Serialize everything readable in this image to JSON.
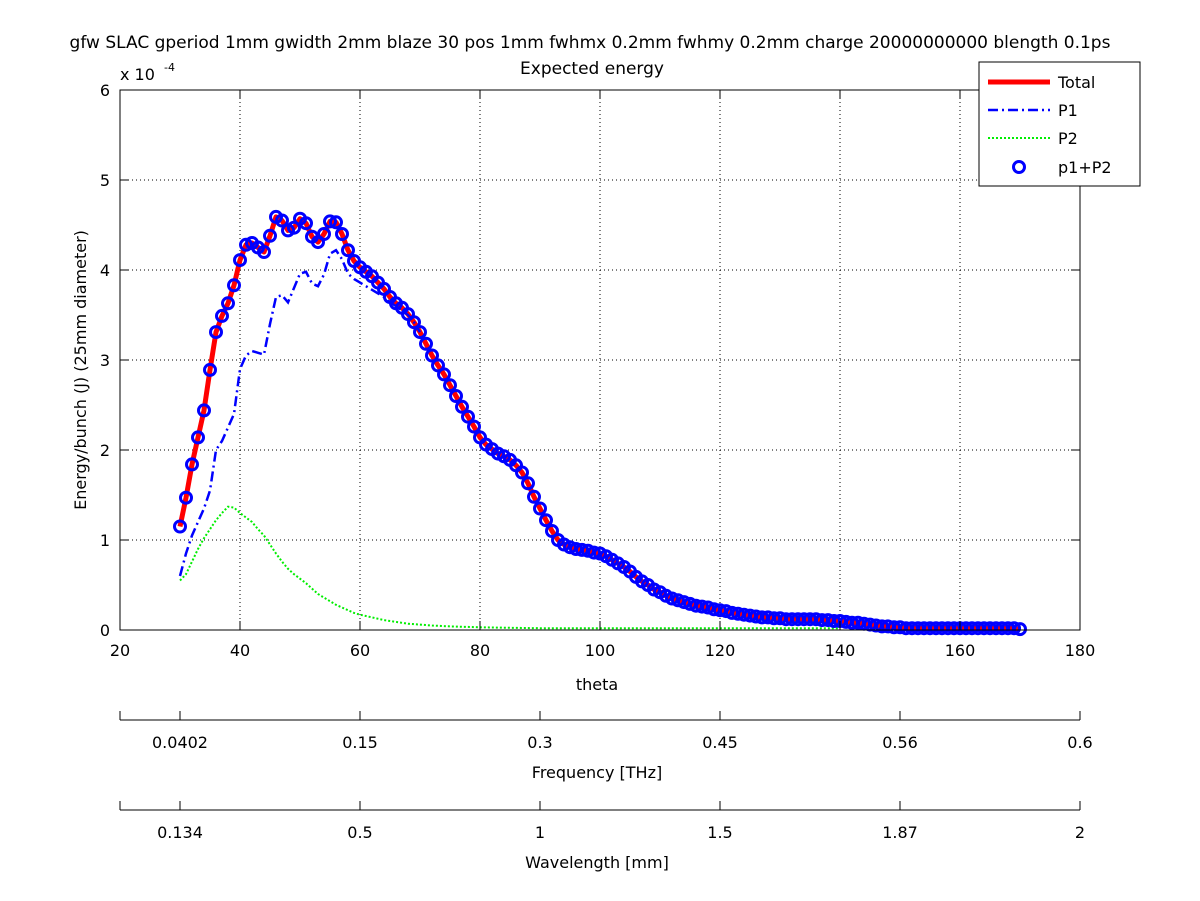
{
  "chart_data": {
    "type": "line",
    "title": "gfw SLAC gperiod 1mm gwidth 2mm blaze 30 pos 1mm fwhmx 0.2mm fwhmy 0.2mm charge 20000000000 blength 0.1ps",
    "subtitle": "Expected energy",
    "xlabel": "theta",
    "ylabel": "Energy/bunch (J) (25mm diameter)",
    "y_multiplier_label": "x 10",
    "y_multiplier_exp": "-4",
    "xlim": [
      20,
      180
    ],
    "ylim": [
      0,
      6
    ],
    "xticks": [
      20,
      40,
      60,
      80,
      100,
      120,
      140,
      160,
      180
    ],
    "yticks": [
      0,
      1,
      2,
      3,
      4,
      5,
      6
    ],
    "grid": true,
    "legend_position": "top-right",
    "secondary_axes": [
      {
        "label": "Frequency [THz]",
        "ticks": [
          {
            "at_theta": 30,
            "label": "0.0402"
          },
          {
            "at_theta": 60,
            "label": "0.15"
          },
          {
            "at_theta": 90,
            "label": "0.3"
          },
          {
            "at_theta": 120,
            "label": "0.45"
          },
          {
            "at_theta": 150,
            "label": "0.56"
          },
          {
            "at_theta": 180,
            "label": "0.6"
          }
        ]
      },
      {
        "label": "Wavelength [mm]",
        "ticks": [
          {
            "at_theta": 30,
            "label": "0.134"
          },
          {
            "at_theta": 60,
            "label": "0.5"
          },
          {
            "at_theta": 90,
            "label": "1"
          },
          {
            "at_theta": 120,
            "label": "1.5"
          },
          {
            "at_theta": 150,
            "label": "1.87"
          },
          {
            "at_theta": 180,
            "label": "2"
          }
        ]
      }
    ],
    "series": [
      {
        "name": "Total",
        "color": "#ff0000",
        "style": "solid-thick",
        "x": [
          30,
          31,
          32,
          33,
          34,
          35,
          36,
          37,
          38,
          39,
          40,
          41,
          42,
          43,
          44,
          45,
          46,
          47,
          48,
          49,
          50,
          51,
          52,
          53,
          54,
          55,
          56,
          57,
          58,
          59,
          60,
          61,
          62,
          63,
          64,
          65,
          66,
          67,
          68,
          69,
          70,
          71,
          72,
          73,
          74,
          75,
          76,
          77,
          78,
          79,
          80,
          81,
          82,
          83,
          84,
          85,
          86,
          87,
          88,
          89,
          90,
          91,
          92,
          93,
          94,
          95,
          96,
          97,
          98,
          99,
          100,
          101,
          102,
          103,
          104,
          105,
          106,
          107,
          108,
          109,
          110,
          111,
          112,
          113,
          114,
          115,
          116,
          117,
          118,
          119,
          120,
          121,
          122,
          123,
          124,
          125,
          126,
          127,
          128,
          129,
          130,
          131,
          132,
          133,
          134,
          135,
          136,
          137,
          138,
          139,
          140,
          141,
          142,
          143,
          144,
          145,
          146,
          147,
          148,
          149,
          150,
          151,
          152,
          153,
          154,
          155,
          156,
          157,
          158,
          159,
          160,
          161,
          162,
          163,
          164,
          165,
          166,
          167,
          168,
          169,
          170
        ],
        "y": [
          1.15,
          1.47,
          1.84,
          2.14,
          2.44,
          2.89,
          3.31,
          3.49,
          3.63,
          3.83,
          4.11,
          4.28,
          4.3,
          4.25,
          4.2,
          4.38,
          4.59,
          4.55,
          4.44,
          4.47,
          4.57,
          4.52,
          4.37,
          4.31,
          4.4,
          4.54,
          4.53,
          4.4,
          4.22,
          4.1,
          4.03,
          3.98,
          3.93,
          3.86,
          3.79,
          3.7,
          3.63,
          3.58,
          3.51,
          3.42,
          3.31,
          3.18,
          3.05,
          2.94,
          2.84,
          2.72,
          2.6,
          2.48,
          2.37,
          2.26,
          2.14,
          2.06,
          2.01,
          1.96,
          1.93,
          1.89,
          1.83,
          1.75,
          1.63,
          1.48,
          1.35,
          1.22,
          1.1,
          1.0,
          0.95,
          0.92,
          0.9,
          0.89,
          0.88,
          0.86,
          0.85,
          0.82,
          0.78,
          0.74,
          0.7,
          0.65,
          0.59,
          0.54,
          0.5,
          0.45,
          0.42,
          0.38,
          0.35,
          0.33,
          0.31,
          0.29,
          0.27,
          0.26,
          0.25,
          0.23,
          0.22,
          0.21,
          0.19,
          0.18,
          0.17,
          0.16,
          0.15,
          0.14,
          0.14,
          0.13,
          0.13,
          0.12,
          0.12,
          0.12,
          0.12,
          0.12,
          0.12,
          0.11,
          0.11,
          0.1,
          0.1,
          0.09,
          0.08,
          0.08,
          0.07,
          0.06,
          0.05,
          0.04,
          0.04,
          0.03,
          0.03,
          0.02,
          0.02,
          0.02,
          0.02,
          0.02,
          0.02,
          0.02,
          0.02,
          0.02,
          0.02,
          0.02,
          0.02,
          0.02,
          0.02,
          0.02,
          0.02,
          0.02,
          0.02,
          0.02,
          0.01
        ]
      },
      {
        "name": "P1",
        "color": "#0000ff",
        "style": "dash-dot",
        "x": [
          30,
          31,
          32,
          33,
          34,
          35,
          36,
          37,
          38,
          39,
          40,
          41,
          42,
          43,
          44,
          45,
          46,
          47,
          48,
          49,
          50,
          51,
          52,
          53,
          54,
          55,
          56,
          57,
          58,
          59,
          60,
          61,
          62,
          63,
          64,
          65,
          66,
          67,
          68,
          69,
          70
        ],
        "y": [
          0.6,
          0.85,
          1.05,
          1.2,
          1.35,
          1.55,
          2.0,
          2.1,
          2.25,
          2.4,
          2.9,
          3.05,
          3.1,
          3.08,
          3.06,
          3.4,
          3.7,
          3.72,
          3.64,
          3.8,
          3.96,
          3.98,
          3.85,
          3.82,
          3.95,
          4.18,
          4.22,
          4.12,
          3.96,
          3.9,
          3.86,
          3.82,
          3.78,
          3.74,
          3.7,
          3.64,
          3.6,
          3.55,
          3.5,
          3.42,
          3.31
        ]
      },
      {
        "name": "P2",
        "color": "#00ee00",
        "style": "dotted",
        "x": [
          30,
          31,
          32,
          33,
          34,
          35,
          36,
          37,
          38,
          39,
          40,
          41,
          42,
          43,
          44,
          45,
          46,
          47,
          48,
          49,
          50,
          51,
          52,
          53,
          54,
          55,
          56,
          57,
          58,
          59,
          60,
          62,
          64,
          66,
          68,
          70,
          72,
          75,
          80,
          85,
          90,
          95,
          100,
          105,
          110,
          115,
          120,
          125,
          130,
          135,
          140
        ],
        "y": [
          0.55,
          0.62,
          0.76,
          0.9,
          1.02,
          1.12,
          1.22,
          1.3,
          1.37,
          1.36,
          1.3,
          1.25,
          1.2,
          1.12,
          1.05,
          0.95,
          0.85,
          0.76,
          0.68,
          0.62,
          0.57,
          0.52,
          0.46,
          0.4,
          0.36,
          0.32,
          0.28,
          0.25,
          0.22,
          0.19,
          0.17,
          0.14,
          0.11,
          0.09,
          0.07,
          0.06,
          0.05,
          0.04,
          0.03,
          0.025,
          0.02,
          0.02,
          0.02,
          0.02,
          0.02,
          0.02,
          0.02,
          0.02,
          0.02,
          0.02,
          0.02
        ]
      },
      {
        "name": "p1+P2",
        "color": "#0000ff",
        "style": "circle-markers",
        "same_as": "Total"
      }
    ]
  }
}
